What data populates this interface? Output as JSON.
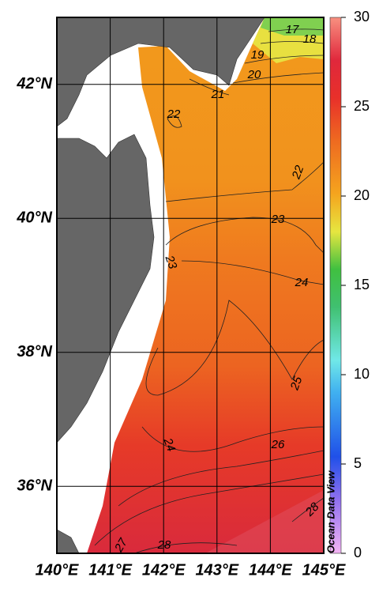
{
  "map": {
    "xlim": [
      140,
      145
    ],
    "ylim": [
      35,
      43
    ],
    "xticks": [
      {
        "value": 140,
        "label": "140°E"
      },
      {
        "value": 141,
        "label": "141°E"
      },
      {
        "value": 142,
        "label": "142°E"
      },
      {
        "value": 143,
        "label": "143°E"
      },
      {
        "value": 144,
        "label": "144°E"
      },
      {
        "value": 145,
        "label": "145°E"
      }
    ],
    "yticks": [
      {
        "value": 36,
        "label": "36°N"
      },
      {
        "value": 38,
        "label": "38°N"
      },
      {
        "value": 40,
        "label": "40°N"
      },
      {
        "value": 42,
        "label": "42°N"
      }
    ],
    "grid": true,
    "colorbar": {
      "lim": [
        0,
        30
      ],
      "ticks": [
        0,
        5,
        10,
        15,
        20,
        25,
        30
      ]
    },
    "contour_labels": [
      17,
      18,
      19,
      20,
      21,
      22,
      22,
      23,
      23,
      24,
      24,
      25,
      26,
      27,
      28,
      28
    ],
    "watermark": "Ocean Data View"
  }
}
